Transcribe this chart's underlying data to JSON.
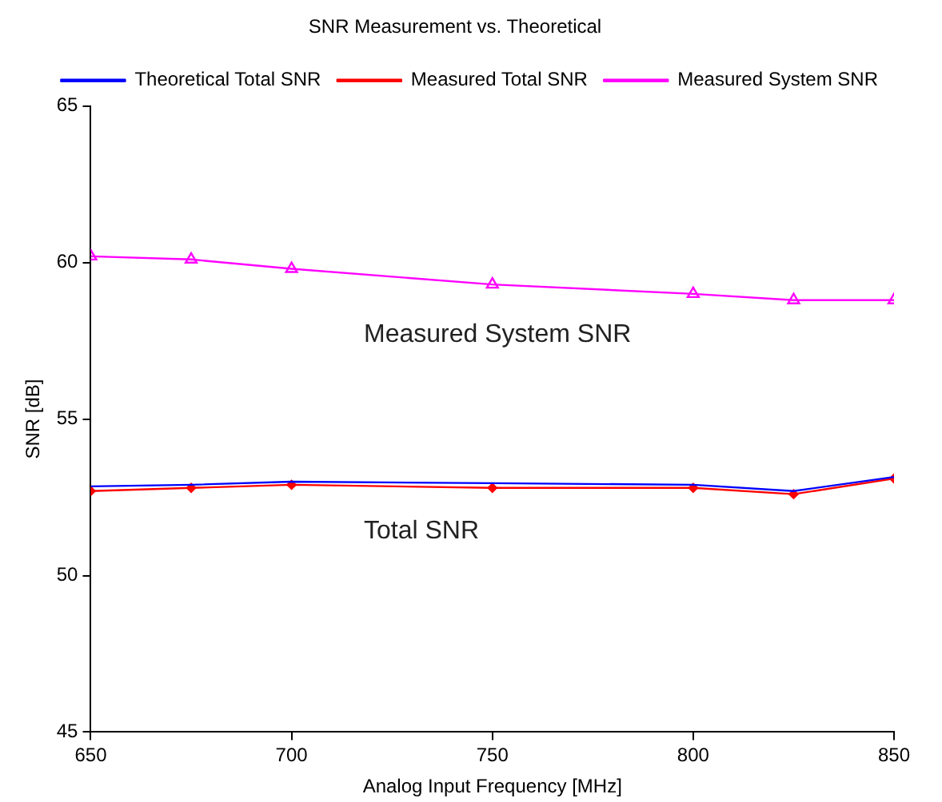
{
  "chart_data": {
    "type": "line",
    "title": "SNR Measurement vs. Theoretical",
    "xlabel": "Analog Input Frequency [MHz]",
    "ylabel": "SNR [dB]",
    "x": [
      650,
      675,
      700,
      750,
      800,
      825,
      850
    ],
    "series": [
      {
        "name": "Theoretical Total SNR",
        "color": "#0000ff",
        "marker": "none",
        "values": [
          52.85,
          52.9,
          53.0,
          52.95,
          52.9,
          52.7,
          53.15
        ]
      },
      {
        "name": "Measured Total SNR",
        "color": "#ff0000",
        "marker": "diamond",
        "values": [
          52.7,
          52.8,
          52.9,
          52.8,
          52.8,
          52.6,
          53.1
        ]
      },
      {
        "name": "Measured System SNR",
        "color": "#ff00ff",
        "marker": "triangle",
        "values": [
          60.2,
          60.1,
          59.8,
          59.3,
          59.0,
          58.8,
          58.8
        ]
      }
    ],
    "xlim": [
      650,
      850
    ],
    "xticks": [
      650,
      700,
      750,
      800,
      850
    ],
    "ylim": [
      45,
      65
    ],
    "yticks": [
      45,
      50,
      55,
      60,
      65
    ],
    "grid": false,
    "legend": "top right",
    "annotations": [
      "Measured System SNR",
      "Total SNR"
    ]
  }
}
